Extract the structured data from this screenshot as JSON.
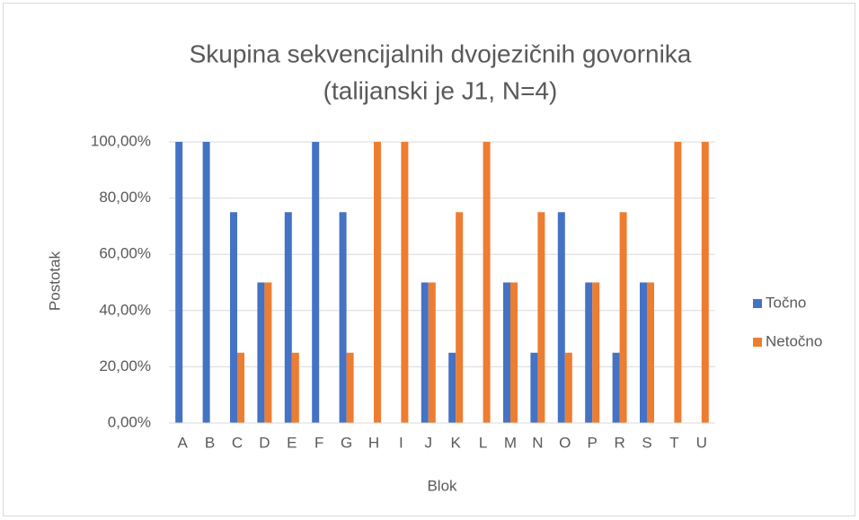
{
  "chart_data": {
    "type": "bar",
    "title": [
      "Skupina sekvencijalnih dvojezičnih govornika",
      "(talijanski je J1, N=4)"
    ],
    "x_label": "Blok",
    "y_label": "Postotak",
    "categories": [
      "A",
      "B",
      "C",
      "D",
      "E",
      "F",
      "G",
      "H",
      "I",
      "J",
      "K",
      "L",
      "M",
      "N",
      "O",
      "P",
      "R",
      "S",
      "T",
      "U"
    ],
    "series": [
      {
        "name": "Točno",
        "color": "#4472c4",
        "values": [
          100,
          100,
          75,
          50,
          75,
          100,
          75,
          0,
          0,
          50,
          25,
          0,
          50,
          25,
          75,
          50,
          25,
          50,
          0,
          0
        ]
      },
      {
        "name": "Netočno",
        "color": "#ed7d31",
        "values": [
          0,
          0,
          25,
          50,
          25,
          0,
          25,
          100,
          100,
          50,
          75,
          100,
          50,
          75,
          25,
          50,
          75,
          50,
          100,
          100
        ]
      }
    ],
    "ylim": [
      0,
      100
    ],
    "yticks": [
      {
        "value": 0,
        "label": "0,00%"
      },
      {
        "value": 20,
        "label": "20,00%"
      },
      {
        "value": 40,
        "label": "40,00%"
      },
      {
        "value": 60,
        "label": "60,00%"
      },
      {
        "value": 80,
        "label": "80,00%"
      },
      {
        "value": 100,
        "label": "100,00%"
      }
    ],
    "grid": true,
    "legend": "right"
  }
}
